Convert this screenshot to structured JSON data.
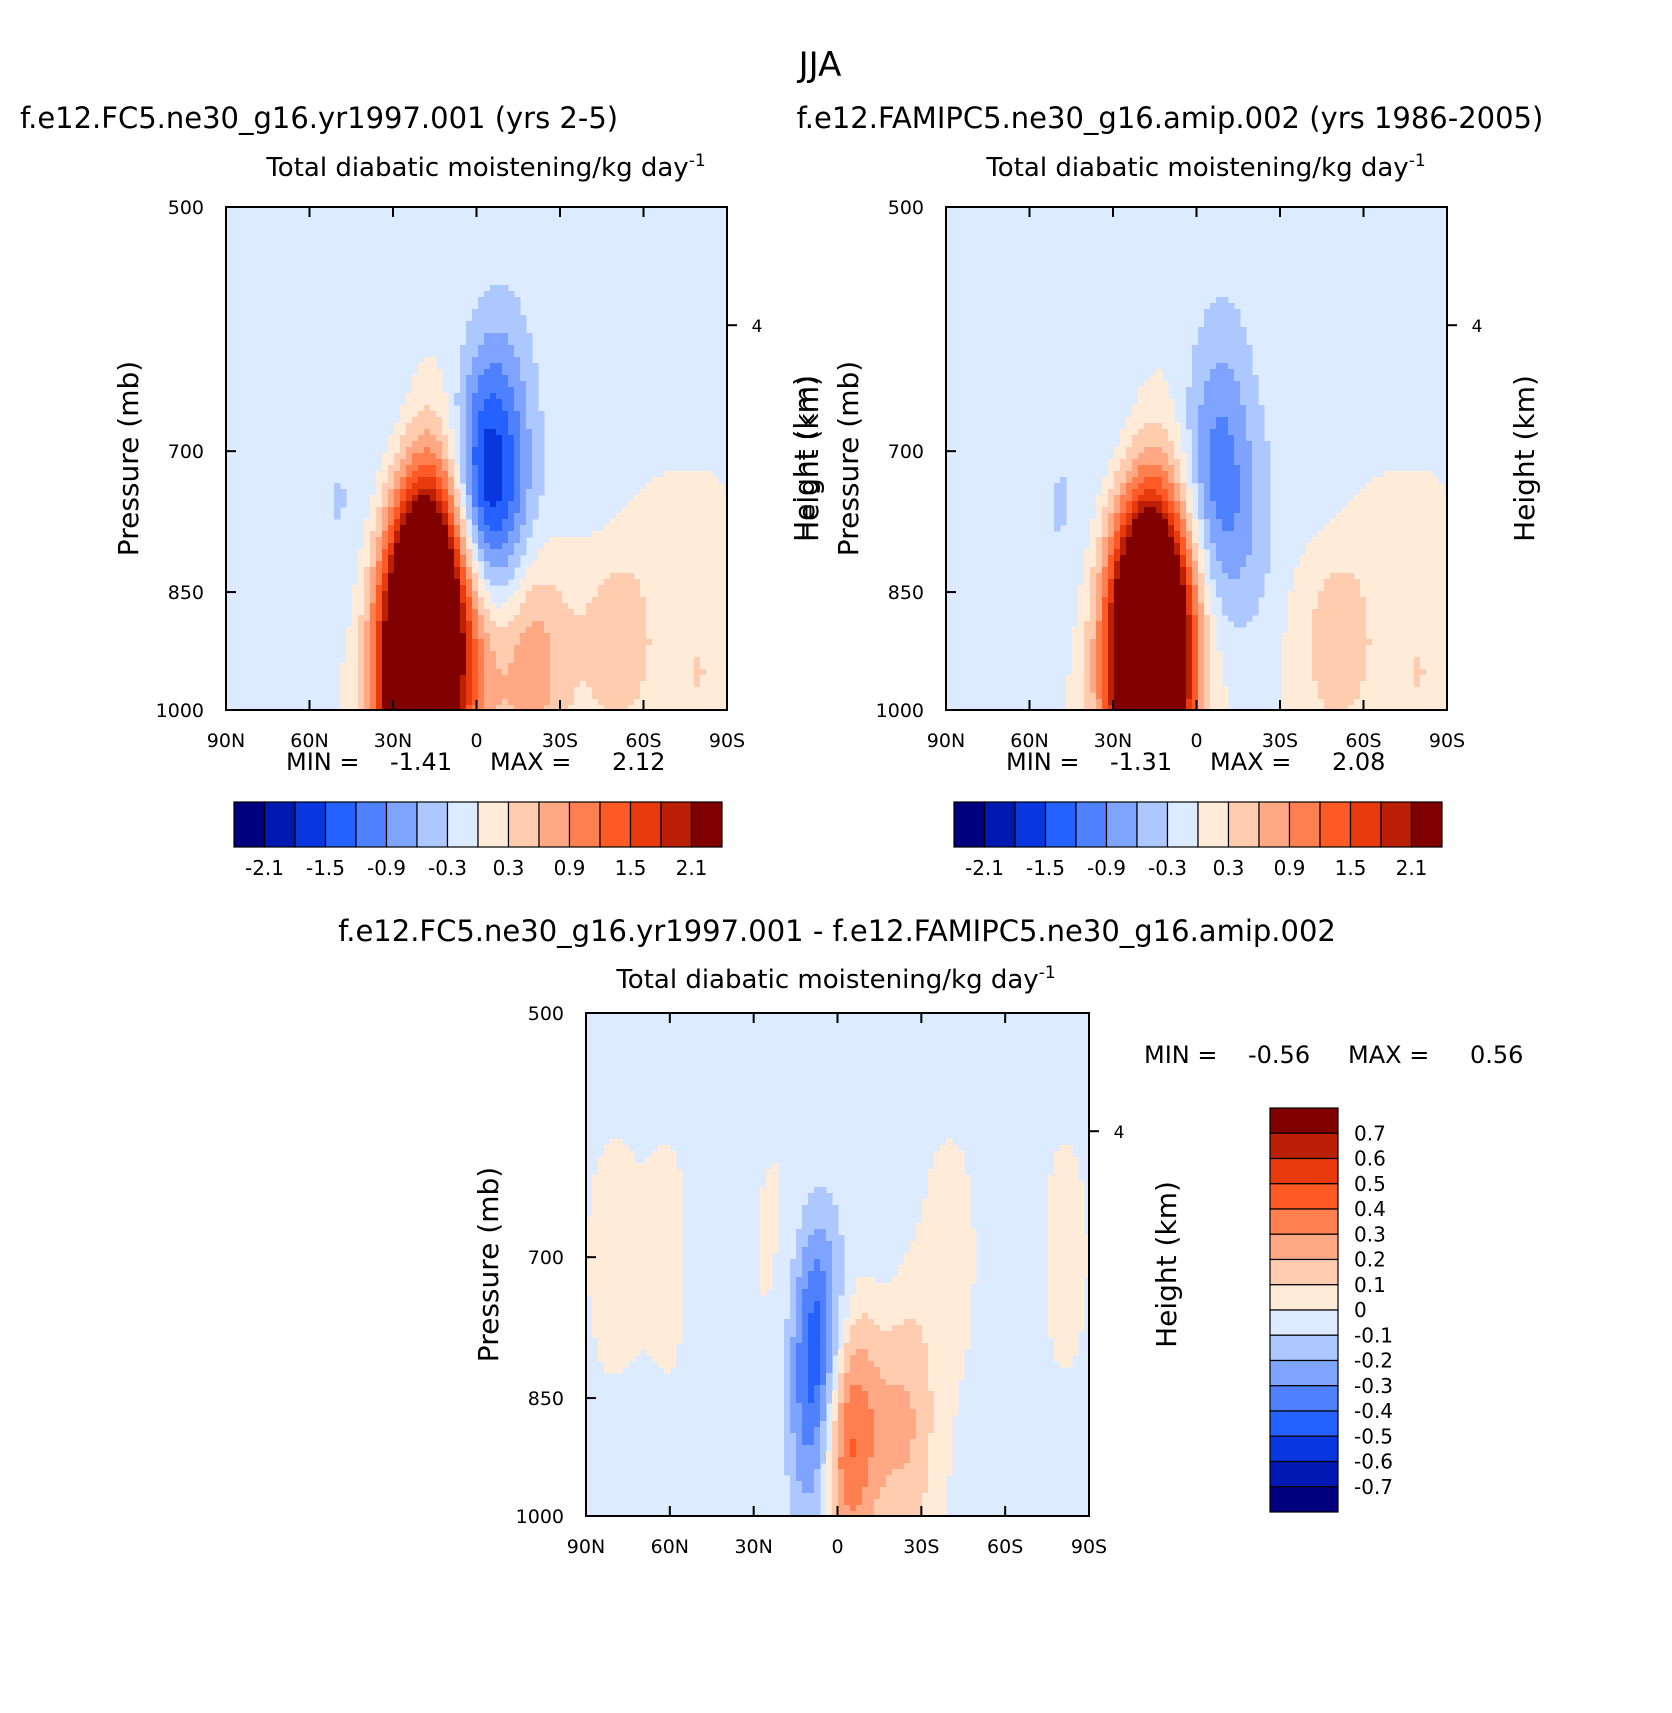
{
  "season_title": "JJA",
  "colors": {
    "panel_scale": [
      "#00007f",
      "#0019b2",
      "#0837e0",
      "#2461ff",
      "#4f81ff",
      "#7fa4ff",
      "#adc8ff",
      "#dcebff",
      "#ffebd8",
      "#ffccb0",
      "#ffa883",
      "#ff7f50",
      "#ff5a26",
      "#e83a0d",
      "#bb1f05",
      "#800000"
    ],
    "diff_scale": [
      "#00007f",
      "#0019b2",
      "#0837e0",
      "#2461ff",
      "#4f81ff",
      "#7fa4ff",
      "#adc8ff",
      "#dcebff",
      "#ffebd8",
      "#ffccb0",
      "#ffa883",
      "#ff7f50",
      "#ff5a26",
      "#e83a0d",
      "#bb1f05",
      "#800000"
    ]
  },
  "chart_data": [
    {
      "type": "heatmap",
      "title": "f.e12.FC5.ne30_g16.yr1997.001 (yrs 2-5)",
      "subtitle": "Total diabatic moistening/kg day",
      "subtitle_exponent": "-1",
      "ylabel": "Pressure (mb)",
      "right_label": "Height (km)",
      "right_tick_label": "4",
      "x_ticks": [
        "90N",
        "60N",
        "30N",
        "0",
        "30S",
        "60S",
        "90S"
      ],
      "y_ticks": [
        "500",
        "700",
        "850",
        "1000"
      ],
      "xlim": [
        90,
        -90
      ],
      "ylim": [
        1000,
        500
      ],
      "stats": {
        "min_label": "MIN =",
        "min": "-1.41",
        "max_label": "MAX =",
        "max": "2.12"
      },
      "colorbar_labels": [
        "-2.1",
        "-1.5",
        "-0.9",
        "-0.3",
        "0.3",
        "0.9",
        "1.5",
        "2.1"
      ],
      "field_levels": [
        {
          "level": -0.3,
          "x": [
            -45,
            -20,
            -10,
            30,
            50,
            85
          ],
          "y": [
            720,
            790,
            620,
            680,
            760,
            820
          ]
        },
        {
          "level": -0.9,
          "x": [
            -5,
            -3
          ],
          "y": [
            720,
            760
          ]
        },
        {
          "level": 0.3,
          "x": [
            -80,
            -55,
            -45,
            10
          ],
          "y": [
            950,
            900,
            880,
            900
          ]
        },
        {
          "level": 0.9,
          "x": [
            -20,
            3,
            15,
            20
          ],
          "y": [
            920,
            920,
            800,
            860
          ]
        },
        {
          "level": 1.5,
          "x": [
            20,
            25
          ],
          "y": [
            850,
            970
          ]
        },
        {
          "level": 2.1,
          "x": [
            20
          ],
          "y": [
            990
          ]
        }
      ]
    },
    {
      "type": "heatmap",
      "title": "f.e12.FAMIPC5.ne30_g16.amip.002 (yrs 1986-2005)",
      "subtitle": "Total diabatic moistening/kg day",
      "subtitle_exponent": "-1",
      "ylabel": "Pressure (mb)",
      "left_extra_label": "Height (km)",
      "right_label": "Height (km)",
      "right_tick_label": "4",
      "x_ticks": [
        "90N",
        "60N",
        "30N",
        "0",
        "30S",
        "60S",
        "90S"
      ],
      "y_ticks": [
        "500",
        "700",
        "850",
        "1000"
      ],
      "xlim": [
        90,
        -90
      ],
      "ylim": [
        1000,
        500
      ],
      "stats": {
        "min_label": "MIN =",
        "min": "-1.31",
        "max_label": "MAX =",
        "max": "2.08"
      },
      "colorbar_labels": [
        "-2.1",
        "-1.5",
        "-0.9",
        "-0.3",
        "0.3",
        "0.9",
        "1.5",
        "2.1"
      ],
      "field_levels": [
        {
          "level": -0.3,
          "x": [
            -45,
            -20,
            -10,
            30,
            50,
            85
          ],
          "y": [
            720,
            790,
            620,
            680,
            760,
            820
          ]
        },
        {
          "level": -0.9,
          "x": [
            -7
          ],
          "y": [
            740
          ]
        },
        {
          "level": 0.3,
          "x": [
            -80,
            -55,
            -45,
            10
          ],
          "y": [
            950,
            900,
            880,
            900
          ]
        },
        {
          "level": 0.9,
          "x": [
            10,
            20
          ],
          "y": [
            880,
            860
          ]
        },
        {
          "level": 1.5,
          "x": [
            17,
            22
          ],
          "y": [
            850,
            960
          ]
        },
        {
          "level": 2.1,
          "x": [
            15
          ],
          "y": [
            990
          ]
        }
      ]
    },
    {
      "type": "heatmap",
      "title": "f.e12.FC5.ne30_g16.yr1997.001 - f.e12.FAMIPC5.ne30_g16.amip.002",
      "subtitle": "Total diabatic moistening/kg day",
      "subtitle_exponent": "-1",
      "ylabel": "Pressure (mb)",
      "right_label": "Height (km)",
      "right_tick_label": "4",
      "x_ticks": [
        "90N",
        "60N",
        "30N",
        "0",
        "30S",
        "60S",
        "90S"
      ],
      "y_ticks": [
        "500",
        "700",
        "850",
        "1000"
      ],
      "xlim": [
        90,
        -90
      ],
      "ylim": [
        1000,
        500
      ],
      "stats": {
        "min_label": "MIN =",
        "min": "-0.56",
        "max_label": "MAX =",
        "max": "0.56"
      },
      "colorbar_labels": [
        "0.7",
        "0.6",
        "0.5",
        "0.4",
        "0.3",
        "0.2",
        "0.1",
        "0",
        "-0.1",
        "-0.2",
        "-0.3",
        "-0.4",
        "-0.5",
        "-0.6",
        "-0.7"
      ],
      "field_levels": [
        {
          "level": 0.05,
          "x": [
            -80,
            -40,
            20,
            60,
            80
          ],
          "y": [
            700,
            700,
            700,
            700,
            700
          ]
        },
        {
          "level": -0.05,
          "x": [
            -65,
            -15,
            45
          ],
          "y": [
            700,
            700,
            700
          ]
        },
        {
          "level": 0.2,
          "x": [
            -25,
            -10,
            0
          ],
          "y": [
            880,
            880,
            900
          ]
        },
        {
          "level": 0.4,
          "x": [
            1
          ],
          "y": [
            910
          ]
        },
        {
          "level": -0.3,
          "x": [
            7,
            6,
            6
          ],
          "y": [
            760,
            850,
            930
          ]
        }
      ]
    }
  ]
}
